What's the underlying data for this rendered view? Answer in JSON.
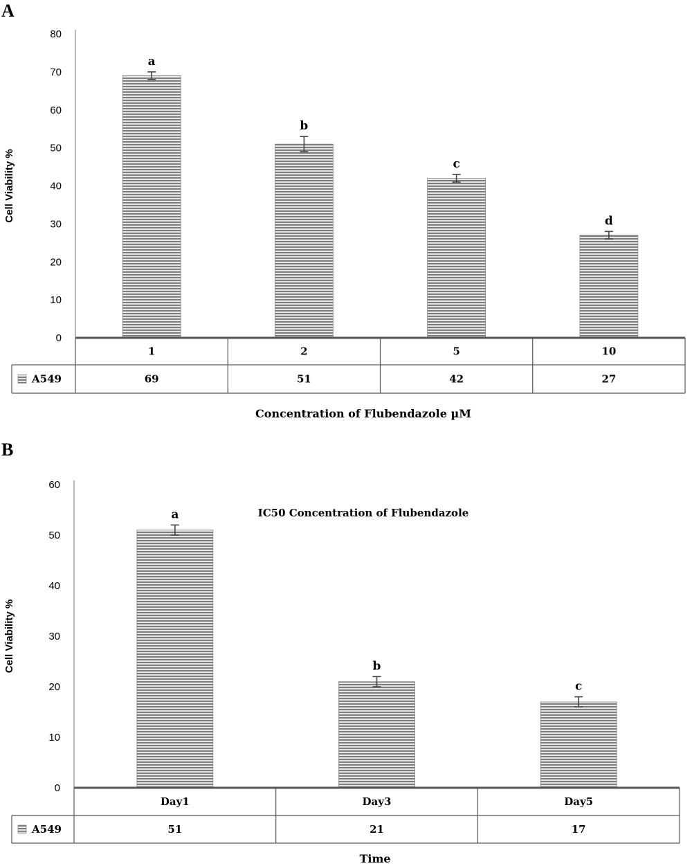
{
  "chart_data": [
    {
      "panel_label": "A",
      "type": "bar",
      "title": "",
      "xlabel": "Concentration of Flubendazole µM",
      "ylabel": "Cell Viability %",
      "ylim": [
        0,
        80
      ],
      "yticks": [
        0,
        10,
        20,
        30,
        40,
        50,
        60,
        70,
        80
      ],
      "categories": [
        "1",
        "2",
        "5",
        "10"
      ],
      "series": [
        {
          "name": "A549",
          "values": [
            69,
            51,
            42,
            27
          ],
          "error": [
            1,
            2,
            1,
            1
          ],
          "table_values": [
            "69",
            "51",
            "42",
            "27"
          ]
        }
      ],
      "significance_letters": [
        "a",
        "b",
        "c",
        "d"
      ],
      "bar_color": "#9a9a9a",
      "grid": false,
      "legend": "data table"
    },
    {
      "panel_label": "B",
      "type": "bar",
      "title": "IC50 Concentration of Flubendazole",
      "xlabel": "Time",
      "ylabel": "Cell Viability %",
      "ylim": [
        0,
        60
      ],
      "yticks": [
        0,
        10,
        20,
        30,
        40,
        50,
        60
      ],
      "categories": [
        "Day1",
        "Day3",
        "Day5"
      ],
      "series": [
        {
          "name": "A549",
          "values": [
            51,
            21,
            17
          ],
          "error": [
            1,
            1,
            1
          ],
          "table_values": [
            "51",
            "21",
            "17"
          ]
        }
      ],
      "significance_letters": [
        "a",
        "b",
        "c"
      ],
      "bar_color": "#9a9a9a",
      "grid": false,
      "legend": "data table"
    }
  ]
}
